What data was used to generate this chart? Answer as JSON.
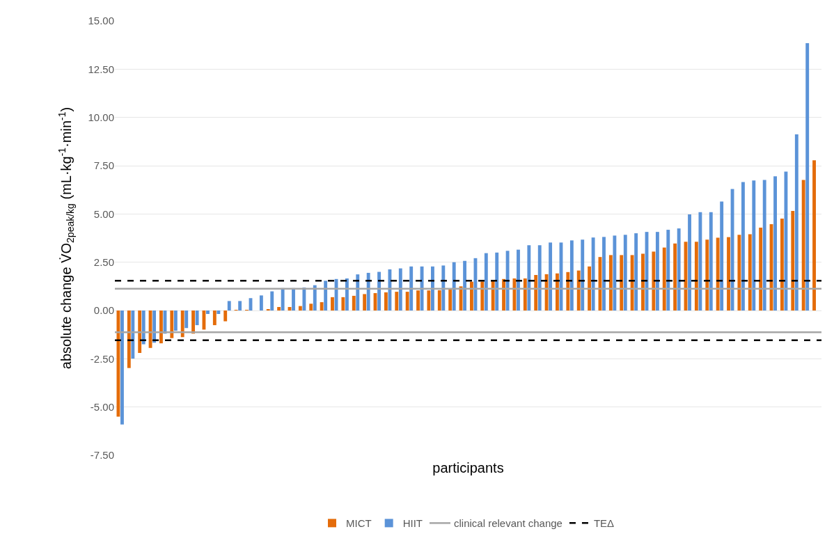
{
  "chart_data": {
    "type": "bar",
    "xlabel": "participants",
    "ylabel": "absolute change V̇O$_{2peak/kg}$ (mL·kg$^{-1}$·min$^{-1}$)",
    "categories": [
      null,
      null,
      null,
      null,
      null,
      null,
      null,
      null,
      null,
      null,
      null,
      null,
      null,
      null,
      null,
      null,
      null,
      null,
      null,
      null,
      null,
      null,
      null,
      null,
      null,
      null,
      null,
      null,
      null,
      null,
      null,
      null,
      null,
      null,
      null,
      null,
      null,
      null,
      null,
      null,
      null,
      null,
      null,
      null,
      null,
      null,
      null,
      null,
      null,
      null,
      null,
      null,
      null,
      null,
      null,
      null,
      null,
      null,
      null,
      null,
      null,
      null,
      null,
      null,
      null,
      null
    ],
    "series": [
      {
        "name": "MICT",
        "color": "#e46c0a",
        "values": [
          -5.5,
          -2.98,
          -2.2,
          -1.94,
          -1.7,
          -1.43,
          -1.38,
          -1.2,
          -0.99,
          -0.76,
          -0.56,
          0.02,
          0.02,
          0,
          0.05,
          0.18,
          0.18,
          0.23,
          0.35,
          0.43,
          0.69,
          0.69,
          0.76,
          0.85,
          0.9,
          0.94,
          0.97,
          0.97,
          1.04,
          1.04,
          1.05,
          1.08,
          1.25,
          1.49,
          1.5,
          1.54,
          1.63,
          1.66,
          1.66,
          1.84,
          1.88,
          1.92,
          1.99,
          2.07,
          2.28,
          2.77,
          2.87,
          2.87,
          2.87,
          2.94,
          3.05,
          3.26,
          3.47,
          3.56,
          3.56,
          3.67,
          3.77,
          3.8,
          3.92,
          3.95,
          4.29,
          4.47,
          4.76,
          5.16,
          6.76,
          7.78
        ]
      },
      {
        "name": "HIIT",
        "color": "#5b93d8",
        "values": [
          -5.9,
          -2.49,
          -1.75,
          -1.67,
          -1.2,
          -1.05,
          -0.91,
          -0.76,
          -0.18,
          -0.18,
          0.49,
          0.49,
          0.64,
          0.78,
          0.99,
          1.16,
          1.16,
          1.19,
          1.31,
          1.54,
          1.63,
          1.66,
          1.87,
          1.95,
          2.0,
          2.13,
          2.18,
          2.28,
          2.28,
          2.28,
          2.33,
          2.5,
          2.57,
          2.71,
          2.97,
          3.0,
          3.09,
          3.15,
          3.38,
          3.38,
          3.52,
          3.52,
          3.63,
          3.67,
          3.78,
          3.81,
          3.88,
          3.92,
          4.0,
          4.07,
          4.07,
          4.18,
          4.25,
          4.98,
          5.09,
          5.09,
          5.64,
          6.29,
          6.65,
          6.73,
          6.76,
          6.95,
          7.19,
          9.12,
          13.85,
          null
        ]
      }
    ],
    "ref_lines": [
      {
        "axis": "y",
        "value": 1.13,
        "label": "clinical relevant change",
        "color": "#a6a6a6",
        "line_style": "solid"
      },
      {
        "axis": "y",
        "value": -1.13,
        "color": "#a6a6a6",
        "line_style": "solid"
      },
      {
        "axis": "y",
        "value": 1.54,
        "label": "TEΔ",
        "color": "#000000",
        "line_style": "dashed"
      },
      {
        "axis": "y",
        "value": -1.54,
        "color": "#000000",
        "line_style": "dashed"
      }
    ],
    "ylim": [
      -7.5,
      15
    ],
    "yticks": [
      {
        "value": -7.5,
        "label": "-7.50"
      },
      {
        "value": -5,
        "label": "-5.00"
      },
      {
        "value": -2.5,
        "label": "-2.50"
      },
      {
        "value": 0,
        "label": "0.00"
      },
      {
        "value": 2.5,
        "label": "2.50"
      },
      {
        "value": 5,
        "label": "5.00"
      },
      {
        "value": 7.5,
        "label": "7.50"
      },
      {
        "value": 10,
        "label": "10.00"
      },
      {
        "value": 12.5,
        "label": "12.50"
      },
      {
        "value": 15,
        "label": "15.00"
      }
    ],
    "grid": "y",
    "legend": "bottom",
    "tick_labels": "y"
  }
}
